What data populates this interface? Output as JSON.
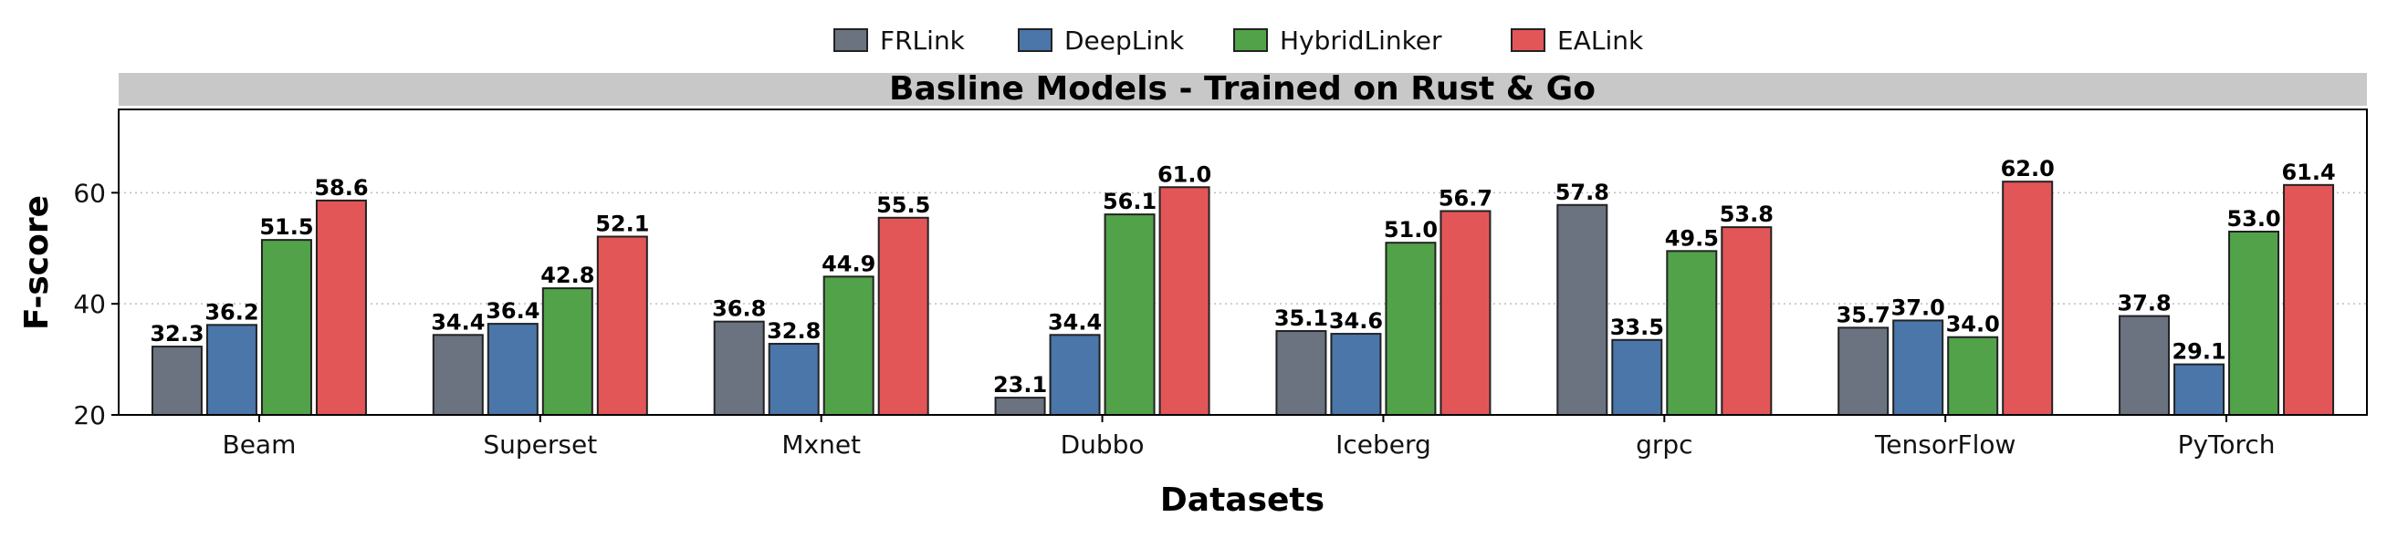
{
  "chart_data": {
    "type": "bar",
    "title": "Basline Models - Trained on Rust & Go",
    "xlabel": "Datasets",
    "ylabel": "F-score",
    "ylim": [
      20,
      75
    ],
    "yticks": [
      20,
      40,
      60
    ],
    "grid": "horizontal dotted",
    "legend": "top-center",
    "categories": [
      "Beam",
      "Superset",
      "Mxnet",
      "Dubbo",
      "Iceberg",
      "grpc",
      "TensorFlow",
      "PyTorch"
    ],
    "series": [
      {
        "name": "FRLink",
        "color": "#6b7380",
        "values": [
          32.3,
          34.4,
          36.8,
          23.1,
          35.1,
          57.8,
          35.7,
          37.8
        ]
      },
      {
        "name": "DeepLink",
        "color": "#4a76aa",
        "values": [
          36.2,
          36.4,
          32.8,
          34.4,
          34.6,
          33.5,
          37.0,
          29.1
        ]
      },
      {
        "name": "HybridLinker",
        "color": "#52a24a",
        "values": [
          51.5,
          42.8,
          44.9,
          56.1,
          51.0,
          49.5,
          34.0,
          53.0
        ]
      },
      {
        "name": "EALink",
        "color": "#e35658",
        "values": [
          58.6,
          52.1,
          55.5,
          61.0,
          56.7,
          53.8,
          62.0,
          61.4
        ]
      }
    ]
  }
}
